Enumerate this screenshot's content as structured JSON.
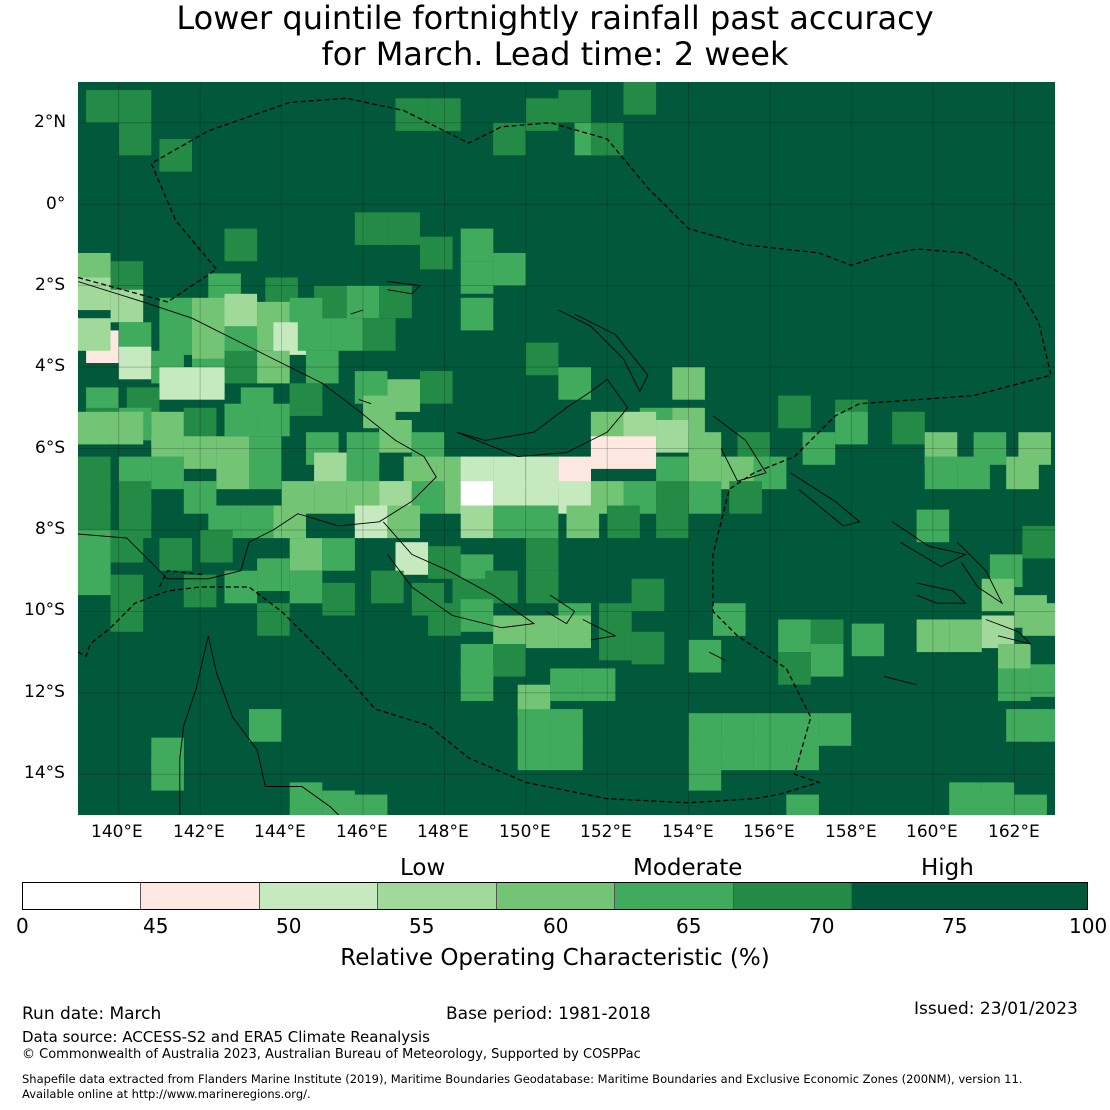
{
  "title_line1": "Lower quintile fortnightly rainfall past accuracy",
  "title_line2": "for March. Lead time: 2 week",
  "map": {
    "lat_labels": [
      "2°N",
      "0°",
      "2°S",
      "4°S",
      "6°S",
      "8°S",
      "10°S",
      "12°S",
      "14°S"
    ],
    "lon_labels": [
      "140°E",
      "142°E",
      "144°E",
      "146°E",
      "148°E",
      "150°E",
      "152°E",
      "154°E",
      "156°E",
      "158°E",
      "160°E",
      "162°E"
    ],
    "lon_range": [
      139.0,
      163.0
    ],
    "lat_range": [
      -15.0,
      3.0
    ]
  },
  "colorbar": {
    "category_labels": [
      "Low",
      "Moderate",
      "High"
    ],
    "ticks": [
      "0",
      "45",
      "50",
      "55",
      "60",
      "65",
      "70",
      "75",
      "100"
    ],
    "colors": [
      "#ffffff",
      "#fde9e1",
      "#c7e9c0",
      "#a1d99b",
      "#74c476",
      "#41ab5d",
      "#238b45",
      "#02583a"
    ],
    "title": "Relative Operating Characteristic (%)"
  },
  "footer": {
    "run_date": "Run date: March",
    "base_period": "Base period: 1981-2018",
    "issued": "Issued: 23/01/2023",
    "data_source": "Data source: ACCESS-S2 and ERA5 Climate Reanalysis",
    "copyright": "© Commonwealth of Australia 2023, Australian Bureau of Meteorology, Supported by COSPPac",
    "shapefile_line1": "Shapefile data extracted from Flanders Marine Institute (2019), Maritime Boundaries Geodatabase: Maritime Boundaries and Exclusive Economic Zones (200NM), version 11.",
    "shapefile_line2": "Available online at http://www.marineregions.org/."
  }
}
